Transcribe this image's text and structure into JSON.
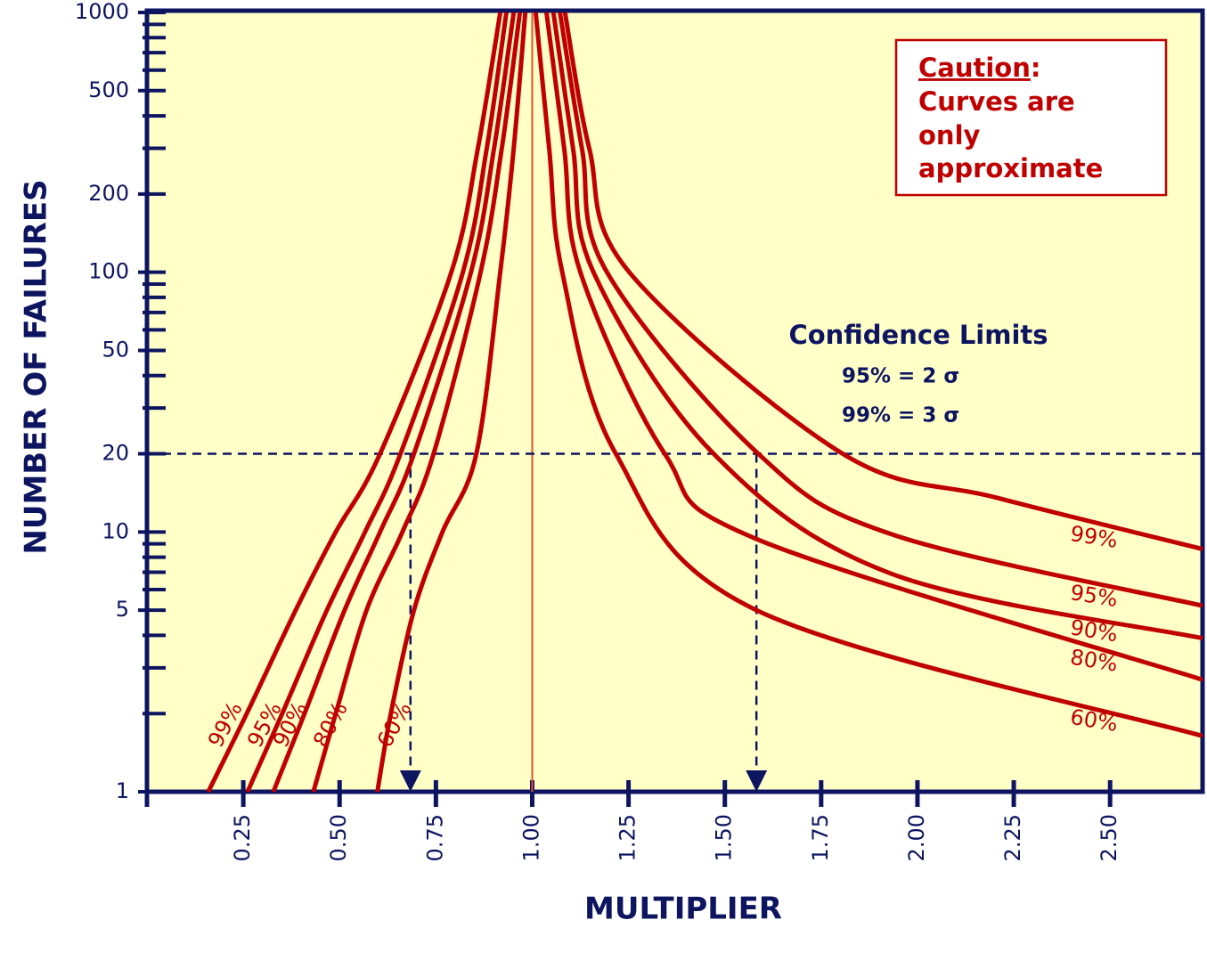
{
  "chart_data": {
    "type": "line",
    "y_label": "NUMBER OF FAILURES",
    "x_label": "MULTIPLIER",
    "log_y": true,
    "xlim": [
      0,
      2.74
    ],
    "ylim": [
      1,
      1000
    ],
    "yticks": [
      1,
      5,
      10,
      20,
      50,
      100,
      200,
      500,
      1000
    ],
    "yticks_minor": [
      2,
      3,
      4,
      6,
      7,
      8,
      9,
      30,
      40,
      60,
      70,
      80,
      90,
      300,
      400,
      600,
      700,
      800,
      900
    ],
    "xticks": [
      0.25,
      {
        "value": 0.5,
        "label": "0.50"
      },
      0.75,
      {
        "value": 1,
        "label": "1.00"
      },
      1.25,
      {
        "value": 1.5,
        "label": "1.50"
      },
      1.75,
      {
        "value": 2,
        "label": "2.00"
      },
      2.25,
      {
        "value": 2.5,
        "label": "2.50"
      }
    ],
    "center_line_x": 1,
    "reference": {
      "y": 20,
      "x": [
        0.684,
        1.582
      ]
    },
    "series": [
      {
        "name": "99%",
        "color": "#c00000",
        "x": [
          0.159,
          0.259,
          0.386,
          0.49,
          0.605,
          0.79,
          0.859,
          0.917
        ],
        "values": [
          1,
          2,
          5,
          10,
          20,
          100,
          300,
          1000
        ]
      },
      {
        "name": "95%",
        "color": "#c00000",
        "x": [
          0.261,
          0.351,
          0.467,
          0.566,
          0.658,
          0.82,
          0.882,
          0.933
        ],
        "values": [
          1,
          2,
          5,
          10,
          20,
          100,
          300,
          1000
        ]
      },
      {
        "name": "90%",
        "color": "#c00000",
        "x": [
          0.328,
          0.409,
          0.513,
          0.605,
          0.693,
          0.841,
          0.901,
          0.952
        ],
        "values": [
          1,
          2,
          5,
          10,
          20,
          100,
          300,
          1000
        ]
      },
      {
        "name": "80%",
        "color": "#c00000",
        "x": [
          0.432,
          0.49,
          0.57,
          0.663,
          0.744,
          0.866,
          0.921,
          0.968
        ],
        "values": [
          1,
          2,
          5,
          10,
          20,
          100,
          300,
          1000
        ]
      },
      {
        "name": "60%",
        "color": "#c00000",
        "x": [
          0.598,
          0.633,
          0.693,
          0.767,
          0.855,
          0.917,
          0.952,
          0.982
        ],
        "values": [
          1,
          2,
          5,
          10,
          20,
          100,
          300,
          1000
        ]
      },
      {
        "name": "99%",
        "color": "#c00000",
        "x": [
          1.085,
          1.148,
          1.252,
          1.806,
          2.21,
          2.74
        ],
        "values": [
          1000,
          300,
          100,
          20,
          13.5,
          8.6
        ]
      },
      {
        "name": "95%",
        "color": "#c00000",
        "x": [
          1.072,
          1.129,
          1.194,
          1.587,
          1.933,
          2.74
        ],
        "values": [
          1000,
          300,
          100,
          20,
          9.8,
          5.2
        ]
      },
      {
        "name": "90%",
        "color": "#c00000",
        "x": [
          1.055,
          1.106,
          1.159,
          1.471,
          1.933,
          2.74
        ],
        "values": [
          1000,
          300,
          100,
          20,
          6.9,
          3.9
        ]
      },
      {
        "name": "80%",
        "color": "#c00000",
        "x": [
          1.037,
          1.083,
          1.125,
          1.344,
          1.582,
          2.74
        ],
        "values": [
          1000,
          300,
          100,
          20,
          9.4,
          2.7
        ]
      },
      {
        "name": "60%",
        "color": "#c00000",
        "x": [
          1.009,
          1.044,
          1.078,
          1.217,
          1.582,
          2.74
        ],
        "values": [
          1000,
          300,
          100,
          20,
          5,
          1.64
        ]
      }
    ],
    "confidence_title": "Confidence Limits",
    "confidence_lines": [
      "95% = 2 σ",
      "99% = 3 σ"
    ],
    "caution_title": "Caution",
    "caution_title_suffix": ":",
    "caution_lines": [
      "Curves are",
      "only",
      "approximate"
    ]
  }
}
